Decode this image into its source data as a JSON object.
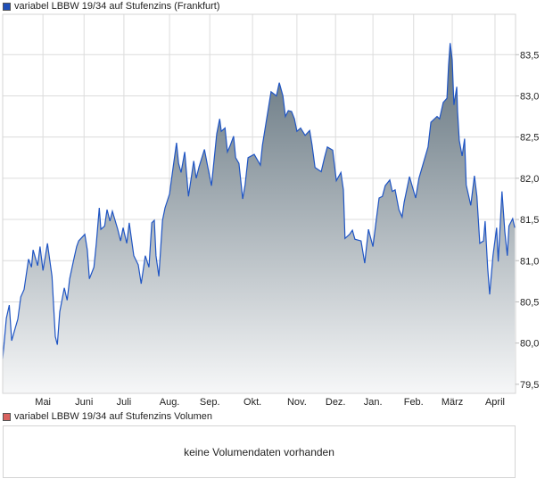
{
  "legend": {
    "price_label": "variabel LBBW 19/34 auf Stufenzins (Frankfurt)",
    "price_color": "#1f4fb8",
    "volume_label": "variabel LBBW 19/34 auf Stufenzins Volumen",
    "volume_color": "#d9625f"
  },
  "volume": {
    "empty_message": "keine Volumendaten vorhanden"
  },
  "chart_data": {
    "type": "area",
    "title": "variabel LBBW 19/34 auf Stufenzins (Frankfurt)",
    "xlabel": "",
    "ylabel": "",
    "x_unit": "months since start of Mai",
    "xlim": [
      -0.98,
      11.5
    ],
    "ylim": [
      79.39,
      83.99
    ],
    "grid": true,
    "line_color": "#1f55c4",
    "fill_top_color": "#5d6e79",
    "fill_bottom_color": "#f6f7f8",
    "y_ticks": [
      {
        "v": 79.5,
        "label": "79,5"
      },
      {
        "v": 80.0,
        "label": "80,0"
      },
      {
        "v": 80.5,
        "label": "80,5"
      },
      {
        "v": 81.0,
        "label": "81,0"
      },
      {
        "v": 81.5,
        "label": "81,5"
      },
      {
        "v": 82.0,
        "label": "82,0"
      },
      {
        "v": 82.5,
        "label": "82,5"
      },
      {
        "v": 83.0,
        "label": "83,0"
      },
      {
        "v": 83.5,
        "label": "83,5"
      }
    ],
    "x_ticks": [
      {
        "v": 0,
        "label": "Mai"
      },
      {
        "v": 1.0,
        "label": "Juni"
      },
      {
        "v": 1.97,
        "label": "Juli"
      },
      {
        "v": 3.08,
        "label": "Aug."
      },
      {
        "v": 4.06,
        "label": "Sep."
      },
      {
        "v": 5.1,
        "label": "Okt."
      },
      {
        "v": 6.18,
        "label": "Nov."
      },
      {
        "v": 7.12,
        "label": "Dez."
      },
      {
        "v": 8.03,
        "label": "Jan."
      },
      {
        "v": 9.02,
        "label": "Feb."
      },
      {
        "v": 9.96,
        "label": "März"
      },
      {
        "v": 11.0,
        "label": "April"
      }
    ],
    "x": [
      -0.98,
      -0.93,
      -0.89,
      -0.82,
      -0.76,
      -0.67,
      -0.61,
      -0.54,
      -0.46,
      -0.35,
      -0.28,
      -0.24,
      -0.13,
      -0.07,
      0,
      0.11,
      0.22,
      0.3,
      0.35,
      0.41,
      0.52,
      0.59,
      0.65,
      0.74,
      0.82,
      0.87,
      1.02,
      1.08,
      1.13,
      1.24,
      1.3,
      1.37,
      1.41,
      1.5,
      1.56,
      1.63,
      1.69,
      1.82,
      1.89,
      1.95,
      2.04,
      2.1,
      2.21,
      2.32,
      2.39,
      2.49,
      2.58,
      2.65,
      2.71,
      2.75,
      2.82,
      2.91,
      2.97,
      3.08,
      3.15,
      3.25,
      3.3,
      3.36,
      3.45,
      3.54,
      3.67,
      3.73,
      3.8,
      3.93,
      4.01,
      4.1,
      4.23,
      4.3,
      4.34,
      4.43,
      4.49,
      4.56,
      4.64,
      4.69,
      4.77,
      4.86,
      4.92,
      4.99,
      5.14,
      5.29,
      5.34,
      5.42,
      5.55,
      5.68,
      5.75,
      5.84,
      5.9,
      5.97,
      6.05,
      6.12,
      6.18,
      6.27,
      6.38,
      6.49,
      6.55,
      6.62,
      6.77,
      6.85,
      6.92,
      7.05,
      7.14,
      7.25,
      7.31,
      7.35,
      7.46,
      7.53,
      7.59,
      7.74,
      7.83,
      7.92,
      8.03,
      8.11,
      8.18,
      8.26,
      8.33,
      8.44,
      8.5,
      8.57,
      8.66,
      8.74,
      8.79,
      8.92,
      9.07,
      9.15,
      9.26,
      9.37,
      9.44,
      9.59,
      9.65,
      9.74,
      9.83,
      9.87,
      9.91,
      9.96,
      10.0,
      10.07,
      10.09,
      10.13,
      10.2,
      10.26,
      10.3,
      10.41,
      10.5,
      10.56,
      10.63,
      10.72,
      10.76,
      10.82,
      10.87,
      10.95,
      11.04,
      11.08,
      11.17,
      11.24,
      11.3,
      11.34,
      11.43,
      11.48
    ],
    "values": [
      79.81,
      80.08,
      80.3,
      80.46,
      80.03,
      80.19,
      80.29,
      80.56,
      80.65,
      81.02,
      80.92,
      81.13,
      80.94,
      81.17,
      80.88,
      81.21,
      80.81,
      80.08,
      79.98,
      80.38,
      80.67,
      80.52,
      80.78,
      80.99,
      81.17,
      81.24,
      81.32,
      81.13,
      80.78,
      80.92,
      81.21,
      81.64,
      81.38,
      81.42,
      81.62,
      81.48,
      81.6,
      81.38,
      81.24,
      81.4,
      81.21,
      81.46,
      81.06,
      80.95,
      80.72,
      81.06,
      80.92,
      81.46,
      81.49,
      81.06,
      80.81,
      81.49,
      81.64,
      81.81,
      82.07,
      82.43,
      82.18,
      82.07,
      82.32,
      81.78,
      82.21,
      82.0,
      82.14,
      82.35,
      82.14,
      81.91,
      82.54,
      82.72,
      82.57,
      82.61,
      82.32,
      82.4,
      82.51,
      82.25,
      82.18,
      81.75,
      81.92,
      82.25,
      82.29,
      82.16,
      82.4,
      82.65,
      83.05,
      83.0,
      83.16,
      83.0,
      82.75,
      82.82,
      82.81,
      82.72,
      82.57,
      82.61,
      82.52,
      82.58,
      82.4,
      82.13,
      82.08,
      82.25,
      82.38,
      82.34,
      81.97,
      82.07,
      81.86,
      81.27,
      81.32,
      81.37,
      81.26,
      81.24,
      80.97,
      81.38,
      81.17,
      81.49,
      81.76,
      81.78,
      81.91,
      81.98,
      81.84,
      81.86,
      81.62,
      81.53,
      81.71,
      82.02,
      81.76,
      82.0,
      82.19,
      82.38,
      82.68,
      82.75,
      82.72,
      82.92,
      82.97,
      83.37,
      83.64,
      83.44,
      82.89,
      83.11,
      82.81,
      82.46,
      82.27,
      82.48,
      81.92,
      81.67,
      82.03,
      81.78,
      81.21,
      81.24,
      81.48,
      80.92,
      80.59,
      81.06,
      81.4,
      80.99,
      81.84,
      81.35,
      81.06,
      81.42,
      81.51,
      81.4
    ]
  }
}
